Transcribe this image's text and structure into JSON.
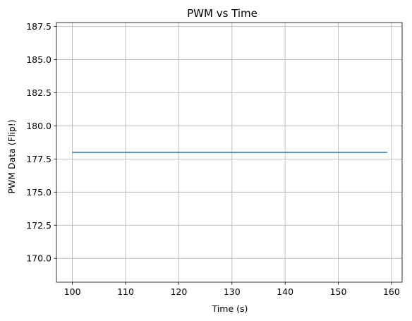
{
  "chart_data": {
    "type": "line",
    "title": "PWM vs Time",
    "xlabel": "Time (s)",
    "ylabel": "PWM Data (Flip!)",
    "xlim": [
      97,
      162
    ],
    "ylim": [
      168.2,
      187.8
    ],
    "xticks": [
      100,
      110,
      120,
      130,
      140,
      150,
      160
    ],
    "yticks": [
      170.0,
      172.5,
      175.0,
      177.5,
      180.0,
      182.5,
      185.0,
      187.5
    ],
    "xtick_labels": [
      "100",
      "110",
      "120",
      "130",
      "140",
      "150",
      "160"
    ],
    "ytick_labels": [
      "170.0",
      "172.5",
      "175.0",
      "177.5",
      "180.0",
      "182.5",
      "185.0",
      "187.5"
    ],
    "grid": true,
    "series": [
      {
        "x": [
          100,
          159.2
        ],
        "y": [
          178,
          178
        ],
        "color": "#1f77b4"
      }
    ]
  }
}
